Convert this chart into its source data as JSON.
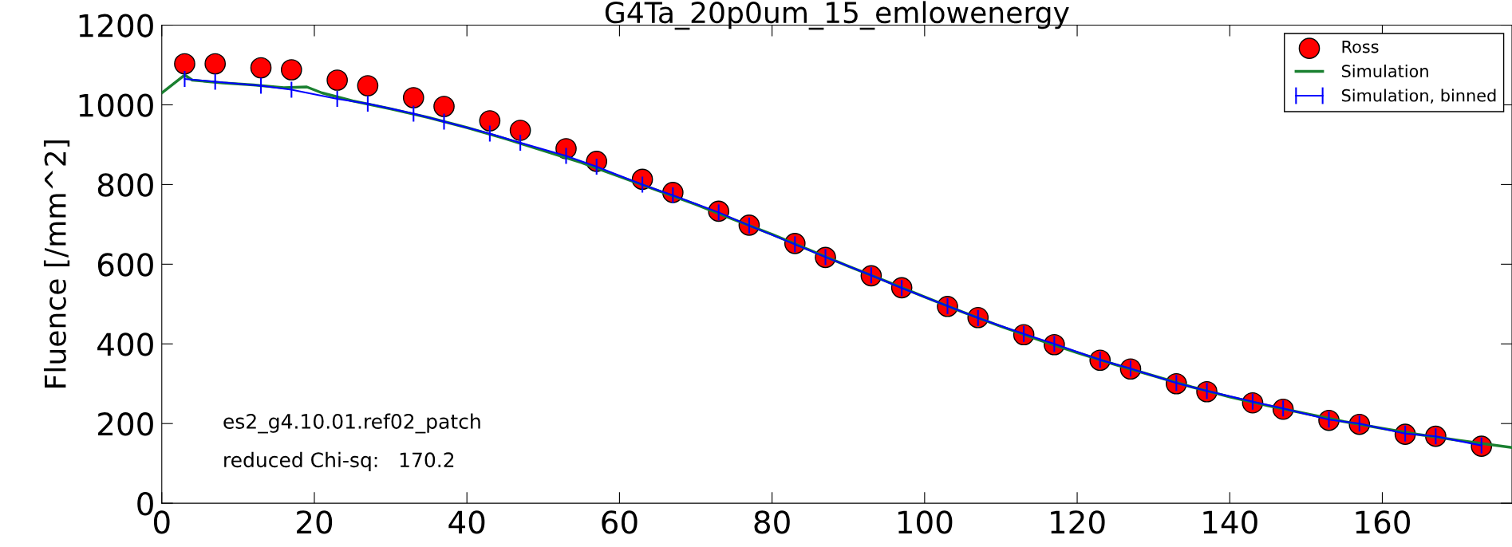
{
  "chart_data": {
    "type": "scatter",
    "title": "G4Ta_20p0um_15_emlowenergy",
    "ylabel": "Fluence [/mm^2]",
    "xlim": [
      0,
      177
    ],
    "xticks": [
      0,
      20,
      40,
      60,
      80,
      100,
      120,
      140,
      160
    ],
    "ylim": [
      0,
      1200
    ],
    "yticks": [
      0,
      200,
      400,
      600,
      800,
      1000,
      1200
    ],
    "grid": false,
    "legend": "top right",
    "annotations": [
      "es2_g4.10.01.ref02_patch",
      "reduced Chi-sq:   170.2"
    ],
    "series": [
      {
        "name": "Ross",
        "marker": "circle",
        "color": "#ff0000",
        "x": [
          3,
          7,
          13,
          17,
          23,
          27,
          33,
          37,
          43,
          47,
          53,
          57,
          63,
          67,
          73,
          77,
          83,
          87,
          93,
          97,
          103,
          107,
          113,
          117,
          123,
          127,
          133,
          137,
          143,
          147,
          153,
          157,
          163,
          167,
          173
        ],
        "values": [
          1103,
          1103,
          1093,
          1088,
          1062,
          1048,
          1018,
          996,
          960,
          936,
          890,
          858,
          813,
          780,
          733,
          698,
          652,
          617,
          571,
          541,
          494,
          466,
          423,
          398,
          359,
          337,
          300,
          280,
          252,
          236,
          208,
          198,
          173,
          168,
          143
        ]
      },
      {
        "name": "Simulation",
        "type": "line",
        "marker": "none",
        "color": "#1a8030",
        "x": [
          0,
          3,
          4,
          8,
          12,
          16,
          19,
          21,
          25,
          30,
          35,
          40,
          45,
          50,
          55,
          60,
          65,
          70,
          75,
          80,
          85,
          90,
          95,
          100,
          105,
          110,
          115,
          120,
          125,
          130,
          135,
          140,
          145,
          150,
          155,
          160,
          165,
          170,
          177
        ],
        "values": [
          1030,
          1075,
          1062,
          1055,
          1050,
          1043,
          1045,
          1030,
          1010,
          990,
          968,
          943,
          915,
          885,
          855,
          820,
          785,
          750,
          712,
          675,
          635,
          595,
          557,
          518,
          480,
          444,
          410,
          378,
          348,
          320,
          292,
          267,
          245,
          225,
          205,
          188,
          172,
          158,
          140
        ]
      },
      {
        "name": "Simulation, binned",
        "type": "line",
        "marker": "none",
        "color": "#0000ff",
        "x": [
          3,
          7,
          13,
          17,
          23,
          27,
          33,
          37,
          43,
          47,
          53,
          57,
          63,
          67,
          73,
          77,
          83,
          87,
          93,
          97,
          103,
          107,
          113,
          117,
          123,
          127,
          133,
          137,
          143,
          147,
          153,
          157,
          163,
          167,
          173
        ],
        "values": [
          1065,
          1058,
          1048,
          1038,
          1015,
          1003,
          978,
          958,
          928,
          905,
          872,
          845,
          800,
          773,
          730,
          697,
          650,
          618,
          572,
          540,
          495,
          465,
          425,
          400,
          360,
          338,
          302,
          282,
          255,
          238,
          210,
          200,
          175,
          168,
          145
        ],
        "errors": [
          20,
          20,
          20,
          20,
          20,
          20,
          20,
          20,
          20,
          20,
          20,
          20,
          20,
          20,
          20,
          20,
          20,
          20,
          20,
          20,
          20,
          20,
          20,
          20,
          20,
          20,
          20,
          20,
          20,
          20,
          20,
          20,
          20,
          20,
          20
        ]
      }
    ]
  }
}
